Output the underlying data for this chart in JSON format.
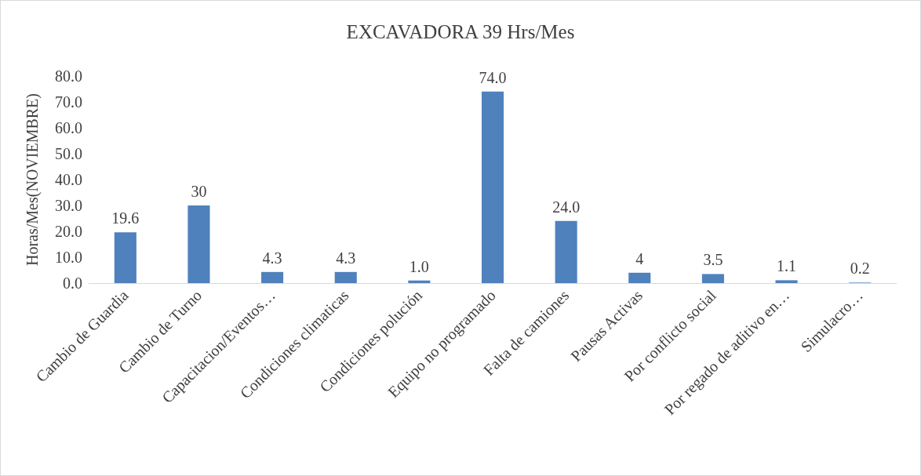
{
  "chart_data": {
    "type": "bar",
    "title": "EXCAVADORA 39 Hrs/Mes",
    "ylabel": "Horas/Mes(NOVIEMBRE)",
    "categories": [
      "Cambio de Guardia",
      "Cambio de Turno",
      "Capacitacion/Eventos…",
      "Condiciones climaticas",
      "Condiciones polución",
      "Equipo no programado",
      "Falta de camiones",
      "Pausas Activas",
      "Por conflicto social",
      "Por regado de aditivo en…",
      "Simulacro…"
    ],
    "values": [
      19.6,
      30,
      4.3,
      4.3,
      1.0,
      74.0,
      24.0,
      4,
      3.5,
      1.1,
      0.2
    ],
    "value_labels": [
      "19.6",
      "30",
      "4.3",
      "4.3",
      "1.0",
      "74.0",
      "24.0",
      "4",
      "3.5",
      "1.1",
      "0.2"
    ],
    "color": "#4f81bd",
    "ylim": [
      0,
      80
    ],
    "yticks": [
      {
        "value": 0,
        "label": "0.0"
      },
      {
        "value": 10,
        "label": "10.0"
      },
      {
        "value": 20,
        "label": "20.0"
      },
      {
        "value": 30,
        "label": "30.0"
      },
      {
        "value": 40,
        "label": "40.0"
      },
      {
        "value": 50,
        "label": "50.0"
      },
      {
        "value": 60,
        "label": "60.0"
      },
      {
        "value": 70,
        "label": "70.0"
      },
      {
        "value": 80,
        "label": "80.0"
      }
    ],
    "grid": false
  }
}
